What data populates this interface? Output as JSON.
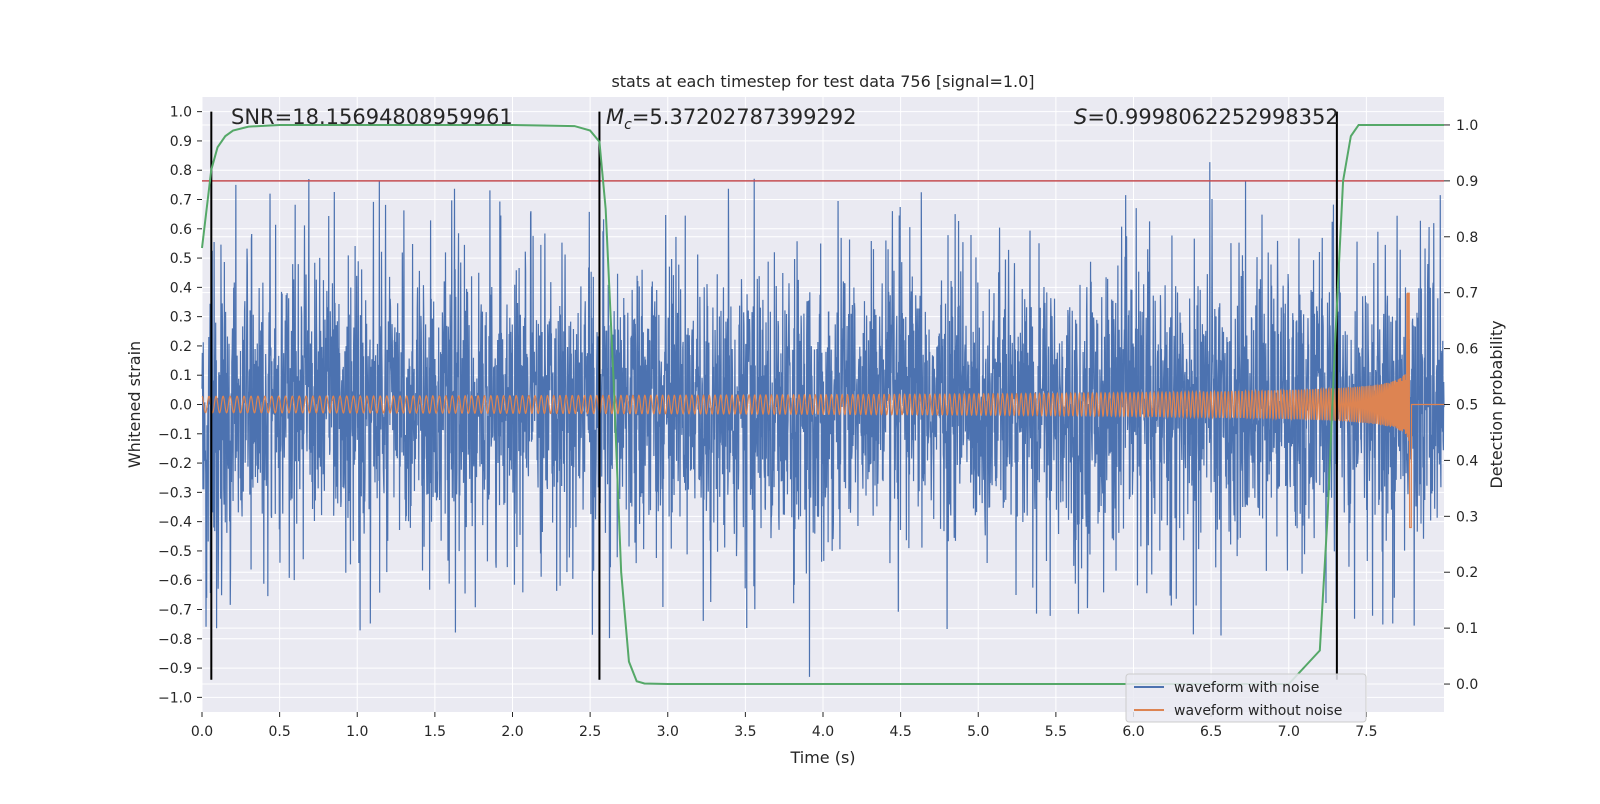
{
  "chart_data": {
    "type": "line",
    "title": "stats at each timestep for test data 756 [signal=1.0]",
    "xlabel": "Time (s)",
    "ylabel_left": "Whitened strain",
    "ylabel_right": "Detection probability",
    "xlim": [
      0.0,
      8.0
    ],
    "ylim_left": [
      -1.05,
      1.05
    ],
    "ylim_right": [
      -0.05,
      1.05
    ],
    "x_ticks": [
      "0.0",
      "0.5",
      "1.0",
      "1.5",
      "2.0",
      "2.5",
      "3.0",
      "3.5",
      "4.0",
      "4.5",
      "5.0",
      "5.5",
      "6.0",
      "6.5",
      "7.0",
      "7.5"
    ],
    "y_left_ticks": [
      "1.0",
      "0.9",
      "0.8",
      "0.7",
      "0.6",
      "0.5",
      "0.4",
      "0.3",
      "0.2",
      "0.1",
      "0.0",
      "−0.1",
      "−0.2",
      "−0.3",
      "−0.4",
      "−0.5",
      "−0.6",
      "−0.7",
      "−0.8",
      "−0.9",
      "−1.0"
    ],
    "y_right_ticks": [
      "1.0",
      "0.9",
      "0.8",
      "0.7",
      "0.6",
      "0.5",
      "0.4",
      "0.3",
      "0.2",
      "0.1",
      "0.0"
    ],
    "annotations": {
      "snr": "SNR=18.15694808959961",
      "mc_symbol": "M",
      "mc_sub": "c",
      "mc_value": "=5.37202787399292",
      "s_symbol": "S",
      "s_value": "=0.9998062252998352"
    },
    "threshold_probability": 0.9,
    "vertical_markers_s": [
      0.06,
      2.56,
      7.31
    ],
    "series": [
      {
        "name": "waveform with noise",
        "color": "#4c72b0",
        "description_envelope": {
          "typical_amplitude": 0.42,
          "peak_max": 0.93,
          "peak_min": -0.93
        }
      },
      {
        "name": "waveform without noise",
        "color": "#dd8452",
        "chirp": {
          "start_amplitude": 0.028,
          "end_amplitude": 0.4,
          "merger_time_s": 7.79,
          "min_value": -0.42
        }
      },
      {
        "name": "detection probability",
        "color": "#55a868",
        "axis": "right",
        "x": [
          0.0,
          0.06,
          0.1,
          0.15,
          0.2,
          0.3,
          0.5,
          1.0,
          2.0,
          2.4,
          2.5,
          2.56,
          2.6,
          2.65,
          2.7,
          2.75,
          2.8,
          2.85,
          3.0,
          4.0,
          5.0,
          6.0,
          7.0,
          7.2,
          7.25,
          7.3,
          7.35,
          7.4,
          7.45,
          7.5,
          7.8,
          8.0
        ],
        "y": [
          0.78,
          0.92,
          0.96,
          0.98,
          0.99,
          0.997,
          1.0,
          1.0,
          1.0,
          0.998,
          0.99,
          0.97,
          0.85,
          0.55,
          0.2,
          0.04,
          0.005,
          0.001,
          0.0,
          0.0,
          0.0,
          0.0,
          0.0,
          0.06,
          0.3,
          0.62,
          0.9,
          0.98,
          1.0,
          1.0,
          1.0,
          1.0
        ]
      }
    ],
    "legend": {
      "placement": "lower-right",
      "entries": [
        "waveform with noise",
        "waveform without noise"
      ]
    },
    "grid": true,
    "colors": {
      "background": "#eaeaf2",
      "grid": "#ffffff",
      "threshold": "#c44e52",
      "marker": "#000000"
    }
  }
}
